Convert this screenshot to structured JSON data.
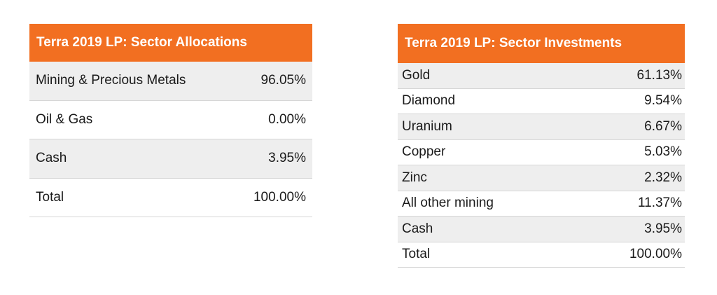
{
  "allocations": {
    "title": "Terra 2019 LP: Sector Allocations",
    "rows": [
      {
        "label": "Mining & Precious Metals",
        "value": "96.05%"
      },
      {
        "label": "Oil & Gas",
        "value": "0.00%"
      },
      {
        "label": "Cash",
        "value": "3.95%"
      },
      {
        "label": "Total",
        "value": "100.00%"
      }
    ]
  },
  "investments": {
    "title": "Terra 2019 LP: Sector Investments",
    "rows": [
      {
        "label": "Gold",
        "value": "61.13%"
      },
      {
        "label": "Diamond",
        "value": "9.54%"
      },
      {
        "label": "Uranium",
        "value": "6.67%"
      },
      {
        "label": "Copper",
        "value": "5.03%"
      },
      {
        "label": "Zinc",
        "value": "2.32%"
      },
      {
        "label": "All other mining",
        "value": "11.37%"
      },
      {
        "label": "Cash",
        "value": "3.95%"
      },
      {
        "label": "Total",
        "value": "100.00%"
      }
    ]
  },
  "colors": {
    "header_bg": "#f26f21",
    "header_text": "#ffffff",
    "row_shade": "#eeeeee",
    "divider": "#d6d6d6"
  }
}
